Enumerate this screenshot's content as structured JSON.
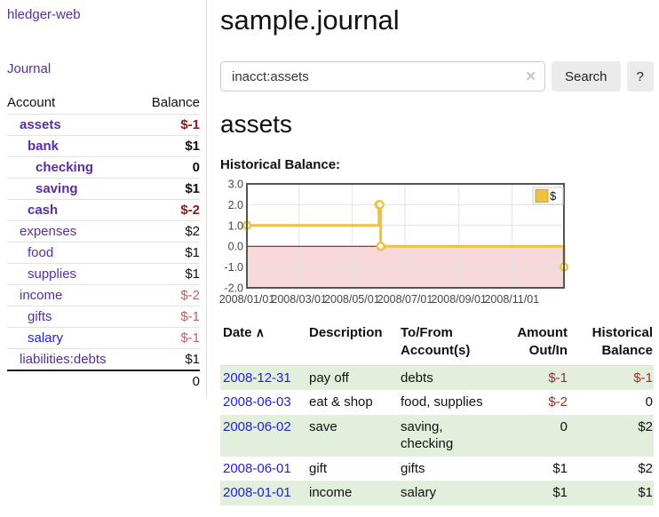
{
  "sidebar": {
    "app_title": "hledger-web",
    "journal_link": "Journal",
    "accounts_header": {
      "account": "Account",
      "balance": "Balance"
    },
    "accounts": [
      {
        "label": "assets",
        "depth": 0,
        "emph": true,
        "balance": "$-1",
        "balance_tone": "neg-strong",
        "label_tone": "purple"
      },
      {
        "label": "bank",
        "depth": 1,
        "emph": true,
        "balance": "$1",
        "balance_tone": "plain",
        "label_tone": "purple"
      },
      {
        "label": "checking",
        "depth": 2,
        "emph": true,
        "balance": "0",
        "balance_tone": "plain",
        "label_tone": "purple"
      },
      {
        "label": "saving",
        "depth": 2,
        "emph": true,
        "balance": "$1",
        "balance_tone": "plain",
        "label_tone": "purple"
      },
      {
        "label": "cash",
        "depth": 1,
        "emph": true,
        "balance": "$-2",
        "balance_tone": "neg-strong",
        "label_tone": "purple"
      },
      {
        "label": "expenses",
        "depth": 0,
        "emph": false,
        "balance": "$2",
        "balance_tone": "plain",
        "label_tone": "purple"
      },
      {
        "label": "food",
        "depth": 1,
        "emph": false,
        "balance": "$1",
        "balance_tone": "plain",
        "label_tone": "purple"
      },
      {
        "label": "supplies",
        "depth": 1,
        "emph": false,
        "balance": "$1",
        "balance_tone": "plain",
        "label_tone": "purple"
      },
      {
        "label": "income",
        "depth": 0,
        "emph": false,
        "balance": "$-2",
        "balance_tone": "neg-soft",
        "label_tone": "purple"
      },
      {
        "label": "gifts",
        "depth": 1,
        "emph": false,
        "balance": "$-1",
        "balance_tone": "neg-soft",
        "label_tone": "purple"
      },
      {
        "label": "salary",
        "depth": 1,
        "emph": false,
        "balance": "$-1",
        "balance_tone": "neg-soft",
        "label_tone": "blue"
      },
      {
        "label": "liabilities:debts",
        "depth": 0,
        "emph": false,
        "balance": "$1",
        "balance_tone": "plain",
        "label_tone": "purple"
      }
    ],
    "total": "0"
  },
  "main": {
    "title": "sample.journal",
    "account_heading": "assets",
    "chart_label": "Historical Balance:"
  },
  "search": {
    "value": "inacct:assets",
    "clear_icon": "✕",
    "button_label": "Search",
    "help_label": "?"
  },
  "register": {
    "columns": [
      {
        "label": "Date",
        "sort_icon": "∧"
      },
      {
        "label": "Description"
      },
      {
        "label": "To/From Account(s)"
      },
      {
        "label": "Amount Out/In"
      },
      {
        "label": "Historical Balance"
      }
    ],
    "rows": [
      {
        "date": "2008-12-31",
        "description": "pay off",
        "accounts": "debts",
        "amount": "$-1",
        "balance": "$-1"
      },
      {
        "date": "2008-06-03",
        "description": "eat & shop",
        "accounts": "food, supplies",
        "amount": "$-2",
        "balance": "0"
      },
      {
        "date": "2008-06-02",
        "description": "save",
        "accounts": "saving, checking",
        "amount": "0",
        "balance": "$2"
      },
      {
        "date": "2008-06-01",
        "description": "gift",
        "accounts": "gifts",
        "amount": "$1",
        "balance": "$2"
      },
      {
        "date": "2008-01-01",
        "description": "income",
        "accounts": "salary",
        "amount": "$1",
        "balance": "$1"
      }
    ]
  },
  "chart_data": {
    "type": "line",
    "title": "Historical Balance:",
    "series": [
      {
        "name": "$",
        "color": "#edc240",
        "step": true,
        "points": [
          [
            "2008-01-01",
            1
          ],
          [
            "2008-06-01",
            2
          ],
          [
            "2008-06-02",
            2
          ],
          [
            "2008-06-03",
            0
          ],
          [
            "2008-12-31",
            -1
          ]
        ]
      }
    ],
    "x_ticks": [
      "2008/01/01",
      "2008/03/01",
      "2008/05/01",
      "2008/07/01",
      "2008/09/01",
      "2008/11/01"
    ],
    "y_ticks": [
      "3.0",
      "2.0",
      "1.0",
      "0.0",
      "-1.0",
      "-2.0"
    ],
    "ylim": [
      -2,
      3
    ],
    "xlim": [
      "2008-01-01",
      "2008-12-31"
    ],
    "grid": true,
    "legend_position": "top-right",
    "colors": {
      "negative_region": "#f8d9d9",
      "zero_line": "#8b0000",
      "plot_border": "#545454",
      "gridline": "#e3e3e3",
      "tick_text": "#454545"
    }
  },
  "colors": {
    "purple_link": "#5b2d9e",
    "blue_link": "#2323cf",
    "neg_strong": "#911717",
    "neg_soft": "#c0605f",
    "table_neg": "#a02b2b",
    "row_stripe": "#e2efdc",
    "accent_yellow": "#edc240"
  }
}
